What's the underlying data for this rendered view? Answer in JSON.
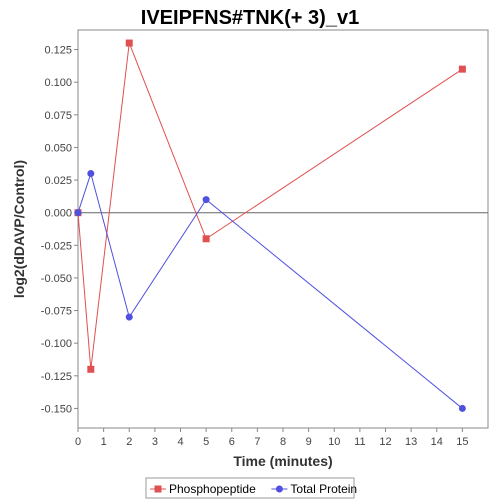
{
  "chart_data": {
    "type": "line",
    "title": "IVEIPFNS#TNK(+ 3)_v1",
    "xlabel": "Time (minutes)",
    "ylabel": "log2(dDAVP/Control)",
    "xlim": [
      0,
      16
    ],
    "ylim": [
      -0.165,
      0.14
    ],
    "x_ticks": [
      0,
      1,
      2,
      3,
      4,
      5,
      6,
      7,
      8,
      9,
      10,
      11,
      12,
      13,
      14,
      15
    ],
    "y_ticks": [
      0.125,
      0.1,
      0.075,
      0.05,
      0.025,
      0.0,
      -0.025,
      -0.05,
      -0.075,
      -0.1,
      -0.125,
      -0.15
    ],
    "y_tick_labels": [
      "0.125",
      "0.100",
      "0.075",
      "0.050",
      "0.025",
      "0.000",
      "-0.025",
      "-0.050",
      "-0.075",
      "-0.100",
      "-0.125",
      "-0.150"
    ],
    "grid": false,
    "zero_line": true,
    "legend_position": "bottom",
    "series": [
      {
        "name": "Phosphopeptide",
        "color": "#e05050",
        "marker": "square",
        "x": [
          0,
          0.5,
          2,
          5,
          15
        ],
        "y": [
          0.0,
          -0.12,
          0.13,
          -0.02,
          0.11
        ]
      },
      {
        "name": "Total Protein",
        "color": "#5050e0",
        "marker": "circle",
        "x": [
          0,
          0.5,
          2,
          5,
          15
        ],
        "y": [
          0.0,
          0.03,
          -0.08,
          0.01,
          -0.15
        ]
      }
    ]
  }
}
